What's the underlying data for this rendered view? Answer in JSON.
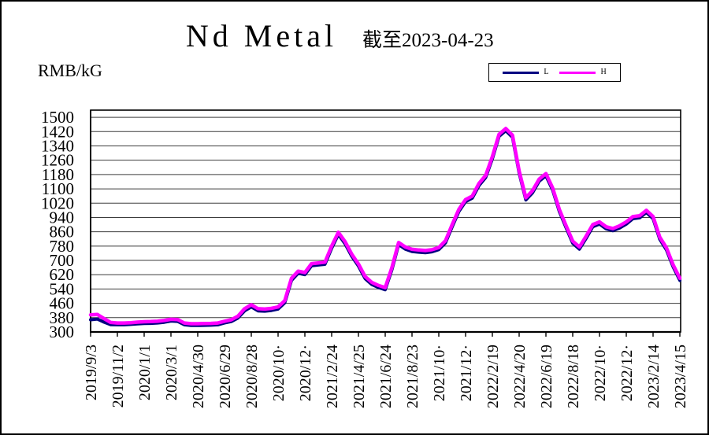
{
  "window": {
    "background": "#FFFFFF",
    "border_color": "#000000"
  },
  "header": {
    "title": "Nd Metal",
    "subtitle": "截至2023-04-23",
    "unit_label": "RMB/kG"
  },
  "legend": {
    "items": [
      {
        "label": "L",
        "color": "#000080"
      },
      {
        "label": "H",
        "color": "#FF00FF"
      }
    ]
  },
  "chart_data": {
    "type": "line",
    "title": "Nd Metal",
    "subtitle": "截至2023-04-23",
    "ylabel": "RMB/kG",
    "grid": "horizontal",
    "legend_position": "top-right",
    "ylim": [
      300,
      1540
    ],
    "y_ticks": [
      300,
      380,
      460,
      540,
      620,
      700,
      780,
      860,
      940,
      1020,
      1100,
      1180,
      1260,
      1340,
      1420,
      1500
    ],
    "x_tick_labels": [
      "2019/9/3",
      "2019/11/2",
      "2020/1/1",
      "2020/3/1",
      "2020/4/30",
      "2020/6/29",
      "2020/8/28",
      "2020/10·",
      "2020/12·",
      "2021/2/24",
      "2021/4/25",
      "2021/6/24",
      "2021/8/23",
      "2021/10·",
      "2021/12·",
      "2022/2/19",
      "2022/4/20",
      "2022/6/19",
      "2022/8/18",
      "2022/10·",
      "2022/12·",
      "2023/2/14",
      "2023/4/15"
    ],
    "x_range": [
      0,
      22
    ],
    "sample_step_ticks": 0.25,
    "series": [
      {
        "name": "L",
        "color": "#000080",
        "stroke_width": 4,
        "values": [
          368,
          372,
          355,
          341,
          340,
          340,
          342,
          345,
          347,
          348,
          350,
          354,
          361,
          359,
          340,
          336,
          336,
          337,
          338,
          340,
          350,
          358,
          378,
          418,
          440,
          418,
          416,
          420,
          428,
          463,
          588,
          628,
          620,
          670,
          674,
          678,
          768,
          845,
          793,
          723,
          668,
          598,
          565,
          548,
          536,
          648,
          788,
          763,
          750,
          746,
          743,
          748,
          760,
          798,
          888,
          973,
          1028,
          1048,
          1118,
          1163,
          1268,
          1393,
          1425,
          1388,
          1188,
          1038,
          1078,
          1143,
          1173,
          1093,
          973,
          883,
          796,
          763,
          823,
          888,
          903,
          876,
          866,
          881,
          903,
          933,
          938,
          968,
          933,
          818,
          758,
          663,
          588
        ]
      },
      {
        "name": "H",
        "color": "#FF00FF",
        "stroke_width": 4.5,
        "values": [
          396,
          398,
          375,
          353,
          350,
          350,
          352,
          355,
          357,
          358,
          360,
          364,
          371,
          369,
          350,
          346,
          346,
          347,
          348,
          350,
          360,
          368,
          388,
          430,
          452,
          430,
          428,
          432,
          440,
          475,
          600,
          640,
          632,
          682,
          686,
          690,
          780,
          857,
          805,
          735,
          680,
          610,
          577,
          560,
          548,
          660,
          800,
          775,
          762,
          758,
          755,
          760,
          772,
          810,
          900,
          985,
          1040,
          1060,
          1130,
          1175,
          1280,
          1405,
          1437,
          1400,
          1200,
          1050,
          1090,
          1155,
          1185,
          1105,
          985,
          895,
          808,
          775,
          835,
          900,
          915,
          888,
          878,
          893,
          915,
          945,
          950,
          980,
          945,
          830,
          770,
          675,
          600
        ]
      }
    ]
  }
}
